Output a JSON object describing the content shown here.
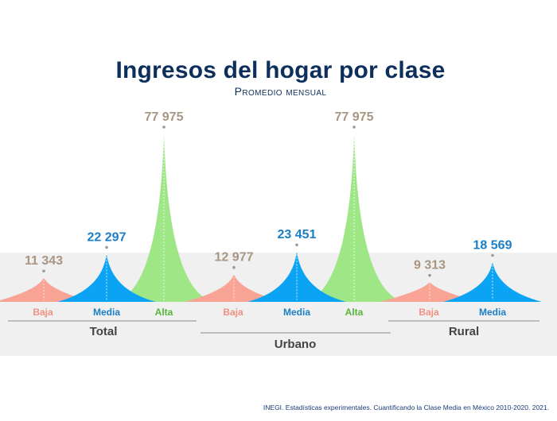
{
  "title": "Ingresos del hogar por clase",
  "subtitle": "Promedio mensual",
  "source": "INEGI. Estadísticas experimentales. Cuantificando la Clase Media en México 2010-2020. 2021.",
  "colors": {
    "baja": "#f8a393",
    "media": "#0ba4f4",
    "alta": "#9ee686",
    "baja_label": "#f0917f",
    "media_label": "#1a7fc6",
    "alta_label": "#56b538",
    "value_muted": "#a89582",
    "band": "#f0f0f0"
  },
  "chart_data": {
    "type": "area",
    "unit": "Ingresos del hogar, promedio mensual",
    "groups": [
      {
        "name": "Total",
        "classes": [
          {
            "name": "Baja",
            "key": "baja",
            "value": 11343,
            "label": "11 343"
          },
          {
            "name": "Media",
            "key": "media",
            "value": 22297,
            "label": "22 297"
          },
          {
            "name": "Alta",
            "key": "alta",
            "value": 77975,
            "label": "77 975"
          }
        ]
      },
      {
        "name": "Urbano",
        "classes": [
          {
            "name": "Baja",
            "key": "baja",
            "value": 12977,
            "label": "12 977"
          },
          {
            "name": "Media",
            "key": "media",
            "value": 23451,
            "label": "23 451"
          },
          {
            "name": "Alta",
            "key": "alta",
            "value": 77975,
            "label": "77 975"
          }
        ]
      },
      {
        "name": "Rural",
        "classes": [
          {
            "name": "Baja",
            "key": "baja",
            "value": 9313,
            "label": "9 313"
          },
          {
            "name": "Media",
            "key": "media",
            "value": 18569,
            "label": "18 569"
          }
        ]
      }
    ]
  }
}
